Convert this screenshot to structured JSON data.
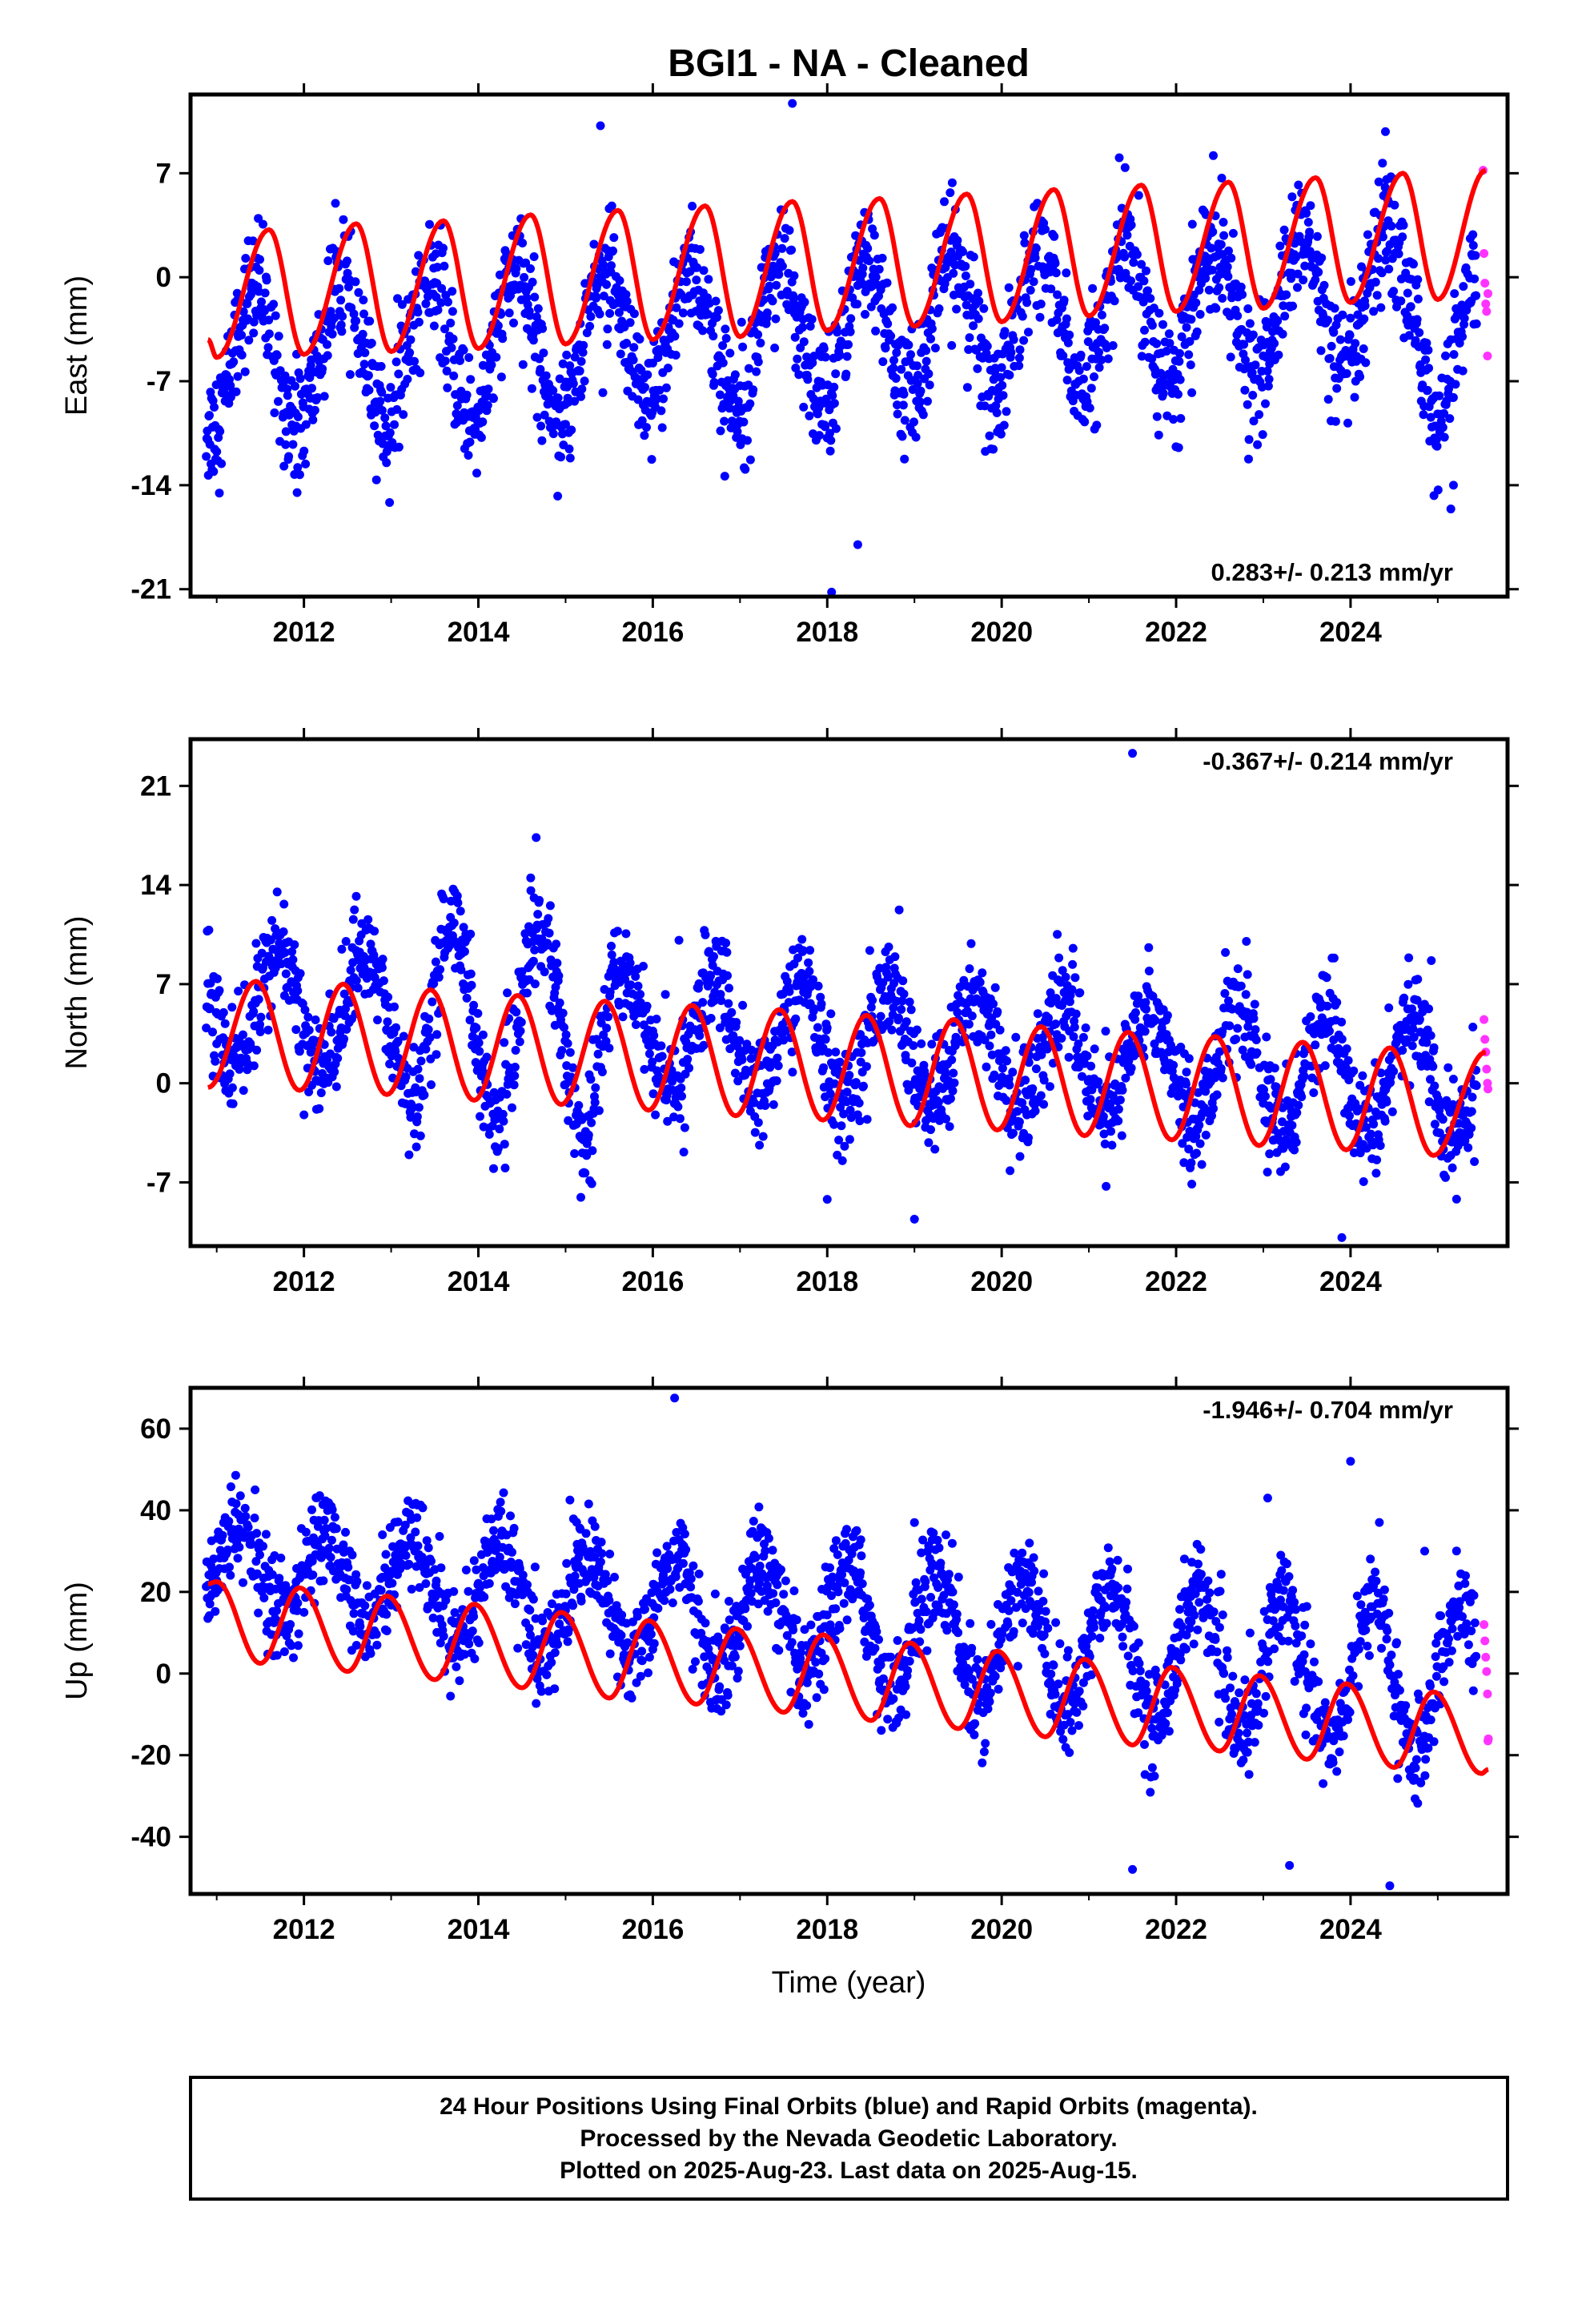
{
  "title": "BGI1  - NA - Cleaned",
  "xlabel": "Time (year)",
  "colors": {
    "final": "#0000ff",
    "rapid": "#ff33ff",
    "model": "#ff0000",
    "frame": "#000000"
  },
  "footer": {
    "line1": "24 Hour Positions Using Final Orbits (blue) and Rapid Orbits (magenta).",
    "line2": "Processed by the Nevada Geodetic Laboratory.",
    "line3": "Plotted on 2025-Aug-23. Last data on 2025-Aug-15."
  },
  "chart_data": [
    {
      "type": "scatter",
      "ylabel": "East (mm)",
      "rate": "0.283+/- 0.213 mm/yr",
      "rate_position": "bottom-right",
      "xlim": [
        2010.7,
        2025.8
      ],
      "ylim": [
        -21.5,
        12.3
      ],
      "xticks": [
        2012,
        2014,
        2016,
        2018,
        2020,
        2022,
        2024
      ],
      "yticks": [
        7,
        0,
        -7,
        -14,
        -21
      ],
      "series": [
        {
          "kind": "final-orbits",
          "x_range": [
            2010.88,
            2025.45
          ],
          "trend": -3.6,
          "slope": 0.283,
          "amplitude": 4.6,
          "phase": 0.18,
          "scatter": 2.0,
          "shift_after_2024_9": -1.2
        },
        {
          "kind": "rapid-orbits",
          "values": [
            {
              "x": 2025.52,
              "y": 7.2
            },
            {
              "x": 2025.53,
              "y": 1.6
            },
            {
              "x": 2025.54,
              "y": -0.4
            },
            {
              "x": 2025.55,
              "y": -1.8
            },
            {
              "x": 2025.56,
              "y": -2.3
            },
            {
              "x": 2025.57,
              "y": -5.3
            },
            {
              "x": 2025.575,
              "y": -1.1
            }
          ]
        },
        {
          "kind": "model",
          "values": [
            {
              "x": 2010.9,
              "y": -4.2
            },
            {
              "x": 2011.0,
              "y": -5.4
            },
            {
              "x": 2011.6,
              "y": 3.2
            },
            {
              "x": 2012.0,
              "y": -5.2
            },
            {
              "x": 2012.6,
              "y": 3.6
            },
            {
              "x": 2013.0,
              "y": -5.0
            },
            {
              "x": 2013.6,
              "y": 3.8
            },
            {
              "x": 2014.0,
              "y": -4.8
            },
            {
              "x": 2014.6,
              "y": 4.2
            },
            {
              "x": 2015.0,
              "y": -4.5
            },
            {
              "x": 2015.6,
              "y": 4.5
            },
            {
              "x": 2016.0,
              "y": -4.2
            },
            {
              "x": 2016.6,
              "y": 4.8
            },
            {
              "x": 2017.0,
              "y": -4.0
            },
            {
              "x": 2017.6,
              "y": 5.1
            },
            {
              "x": 2018.0,
              "y": -3.6
            },
            {
              "x": 2018.6,
              "y": 5.3
            },
            {
              "x": 2019.0,
              "y": -3.3
            },
            {
              "x": 2019.6,
              "y": 5.6
            },
            {
              "x": 2020.0,
              "y": -3.0
            },
            {
              "x": 2020.6,
              "y": 5.9
            },
            {
              "x": 2021.0,
              "y": -2.6
            },
            {
              "x": 2021.6,
              "y": 6.2
            },
            {
              "x": 2022.0,
              "y": -2.3
            },
            {
              "x": 2022.6,
              "y": 6.4
            },
            {
              "x": 2023.0,
              "y": -2.1
            },
            {
              "x": 2023.6,
              "y": 6.7
            },
            {
              "x": 2024.0,
              "y": -1.7
            },
            {
              "x": 2024.6,
              "y": 7.0
            },
            {
              "x": 2025.0,
              "y": -1.5
            },
            {
              "x": 2025.55,
              "y": 7.2
            }
          ]
        }
      ],
      "outliers": [
        {
          "x": 2018.05,
          "y": -21.2
        },
        {
          "x": 2018.35,
          "y": -18.0
        },
        {
          "x": 2015.0,
          "y": -9.9
        },
        {
          "x": 2025.15,
          "y": -15.6
        },
        {
          "x": 2025.18,
          "y": -14.0
        },
        {
          "x": 2014.1,
          "y": -8.0
        },
        {
          "x": 2017.6,
          "y": 11.7
        },
        {
          "x": 2024.4,
          "y": 9.8
        },
        {
          "x": 2015.4,
          "y": 10.2
        }
      ]
    },
    {
      "type": "scatter",
      "ylabel": "North (mm)",
      "rate": "-0.367+/- 0.214 mm/yr",
      "rate_position": "top-right",
      "xlim": [
        2010.7,
        2025.8
      ],
      "ylim": [
        -11.5,
        24.3
      ],
      "xticks": [
        2012,
        2014,
        2016,
        2018,
        2020,
        2022,
        2024
      ],
      "yticks": [
        21,
        14,
        7,
        0,
        -7
      ],
      "series": [
        {
          "kind": "final-orbits",
          "x_range": [
            2010.88,
            2025.45
          ],
          "trend": 2.9,
          "slope": -0.367,
          "amplitude": 4.0,
          "phase": 0.45,
          "scatter": 1.8,
          "seasonal_boost": [
            2013.2,
            2015.6,
            3.0
          ]
        },
        {
          "kind": "rapid-orbits",
          "values": [
            {
              "x": 2025.53,
              "y": 4.5
            },
            {
              "x": 2025.54,
              "y": 3.1
            },
            {
              "x": 2025.55,
              "y": 2.2
            },
            {
              "x": 2025.56,
              "y": 1.0
            },
            {
              "x": 2025.57,
              "y": 0.0
            },
            {
              "x": 2025.575,
              "y": -0.4
            }
          ]
        },
        {
          "kind": "model",
          "values": [
            {
              "x": 2010.9,
              "y": -0.3
            },
            {
              "x": 2011.45,
              "y": 7.2
            },
            {
              "x": 2011.95,
              "y": -0.5
            },
            {
              "x": 2012.45,
              "y": 7.0
            },
            {
              "x": 2012.95,
              "y": -0.8
            },
            {
              "x": 2013.45,
              "y": 6.6
            },
            {
              "x": 2013.95,
              "y": -1.2
            },
            {
              "x": 2014.45,
              "y": 6.2
            },
            {
              "x": 2014.95,
              "y": -1.5
            },
            {
              "x": 2015.45,
              "y": 5.8
            },
            {
              "x": 2015.95,
              "y": -1.9
            },
            {
              "x": 2016.45,
              "y": 5.5
            },
            {
              "x": 2016.95,
              "y": -2.3
            },
            {
              "x": 2017.45,
              "y": 5.2
            },
            {
              "x": 2017.95,
              "y": -2.6
            },
            {
              "x": 2018.45,
              "y": 4.8
            },
            {
              "x": 2018.95,
              "y": -3.0
            },
            {
              "x": 2019.45,
              "y": 4.5
            },
            {
              "x": 2019.95,
              "y": -3.3
            },
            {
              "x": 2020.45,
              "y": 4.0
            },
            {
              "x": 2020.95,
              "y": -3.7
            },
            {
              "x": 2021.45,
              "y": 3.6
            },
            {
              "x": 2021.95,
              "y": -4.0
            },
            {
              "x": 2022.45,
              "y": 3.3
            },
            {
              "x": 2022.95,
              "y": -4.4
            },
            {
              "x": 2023.45,
              "y": 2.9
            },
            {
              "x": 2023.95,
              "y": -4.7
            },
            {
              "x": 2024.45,
              "y": 2.5
            },
            {
              "x": 2024.95,
              "y": -5.1
            },
            {
              "x": 2025.55,
              "y": 2.2
            }
          ]
        }
      ],
      "outliers": [
        {
          "x": 2021.5,
          "y": 23.3
        },
        {
          "x": 2018.0,
          "y": -8.2
        },
        {
          "x": 2019.0,
          "y": -9.6
        },
        {
          "x": 2023.9,
          "y": -10.9
        },
        {
          "x": 2016.3,
          "y": 10.1
        },
        {
          "x": 2012.6,
          "y": 13.2
        },
        {
          "x": 2014.6,
          "y": 14.5
        }
      ]
    },
    {
      "type": "scatter",
      "ylabel": "Up (mm)",
      "rate": "-1.946+/- 0.704 mm/yr",
      "rate_position": "top-right",
      "xlim": [
        2010.7,
        2025.8
      ],
      "ylim": [
        -54,
        70
      ],
      "xticks": [
        2012,
        2014,
        2016,
        2018,
        2020,
        2022,
        2024
      ],
      "yticks": [
        60,
        40,
        20,
        0,
        -20,
        -40
      ],
      "series": [
        {
          "kind": "final-orbits",
          "x_range": [
            2010.88,
            2025.45
          ],
          "trend": 12.0,
          "slope": -1.946,
          "amplitude": 10.0,
          "phase": 0.0,
          "scatter": 6.0,
          "amp_growth": 0.6
        },
        {
          "kind": "rapid-orbits",
          "values": [
            {
              "x": 2025.53,
              "y": 12.0
            },
            {
              "x": 2025.54,
              "y": 8.0
            },
            {
              "x": 2025.55,
              "y": 4.0
            },
            {
              "x": 2025.56,
              "y": 0.5
            },
            {
              "x": 2025.57,
              "y": -5.0
            },
            {
              "x": 2025.575,
              "y": -16.5
            },
            {
              "x": 2025.58,
              "y": -16.0
            }
          ]
        },
        {
          "kind": "model",
          "values": [
            {
              "x": 2010.9,
              "y": 22.0
            },
            {
              "x": 2011.0,
              "y": 22.5
            },
            {
              "x": 2011.5,
              "y": 2.5
            },
            {
              "x": 2011.95,
              "y": 21.0
            },
            {
              "x": 2012.5,
              "y": 0.5
            },
            {
              "x": 2012.95,
              "y": 19.0
            },
            {
              "x": 2013.5,
              "y": -1.5
            },
            {
              "x": 2013.95,
              "y": 17.0
            },
            {
              "x": 2014.5,
              "y": -3.5
            },
            {
              "x": 2014.95,
              "y": 15.0
            },
            {
              "x": 2015.5,
              "y": -6.0
            },
            {
              "x": 2015.95,
              "y": 13.0
            },
            {
              "x": 2016.5,
              "y": -7.5
            },
            {
              "x": 2016.95,
              "y": 11.0
            },
            {
              "x": 2017.5,
              "y": -9.5
            },
            {
              "x": 2017.95,
              "y": 9.5
            },
            {
              "x": 2018.5,
              "y": -11.5
            },
            {
              "x": 2018.95,
              "y": 7.5
            },
            {
              "x": 2019.5,
              "y": -13.5
            },
            {
              "x": 2019.95,
              "y": 5.5
            },
            {
              "x": 2020.5,
              "y": -15.5
            },
            {
              "x": 2020.95,
              "y": 3.5
            },
            {
              "x": 2021.5,
              "y": -17.5
            },
            {
              "x": 2021.95,
              "y": 1.5
            },
            {
              "x": 2022.5,
              "y": -19.0
            },
            {
              "x": 2022.95,
              "y": -0.5
            },
            {
              "x": 2023.5,
              "y": -21.0
            },
            {
              "x": 2023.95,
              "y": -2.5
            },
            {
              "x": 2024.5,
              "y": -23.0
            },
            {
              "x": 2024.95,
              "y": -4.5
            },
            {
              "x": 2025.5,
              "y": -24.5
            },
            {
              "x": 2025.58,
              "y": -23.5
            }
          ]
        }
      ],
      "outliers": [
        {
          "x": 2016.25,
          "y": 67.5
        },
        {
          "x": 2024.0,
          "y": 52.0
        },
        {
          "x": 2023.05,
          "y": 43.0
        },
        {
          "x": 2015.05,
          "y": 42.5
        },
        {
          "x": 2019.0,
          "y": 37.0
        },
        {
          "x": 2012.9,
          "y": 34.0
        },
        {
          "x": 2024.85,
          "y": 30.0
        },
        {
          "x": 2023.2,
          "y": 29.0
        },
        {
          "x": 2024.45,
          "y": -52.0
        },
        {
          "x": 2021.5,
          "y": -48.0
        },
        {
          "x": 2023.3,
          "y": -47.0
        }
      ]
    }
  ]
}
